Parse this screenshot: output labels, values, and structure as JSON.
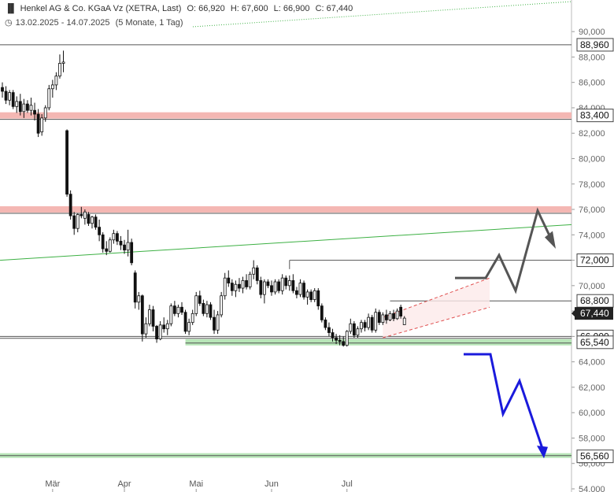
{
  "header": {
    "icon": "candlestick-icon",
    "title": "Henkel AG & Co. KGaA Vz (XETRA, Last)",
    "open": "O: 66,920",
    "high": "H: 67,600",
    "low": "L: 66,900",
    "close": "C: 67,440",
    "clock_icon": "clock-icon",
    "range": "13.02.2025 - 14.07.2025",
    "period": "(5 Monate, 1 Tag)"
  },
  "chart_data": {
    "type": "candlestick",
    "ylim": [
      54000,
      91000
    ],
    "y_ticks": [
      {
        "v": 90000,
        "label": "90,000"
      },
      {
        "v": 88000,
        "label": "88,000"
      },
      {
        "v": 86000,
        "label": "86,000"
      },
      {
        "v": 84000,
        "label": "84,000"
      },
      {
        "v": 82000,
        "label": "82,000"
      },
      {
        "v": 80000,
        "label": "80,000"
      },
      {
        "v": 78000,
        "label": "78,000"
      },
      {
        "v": 76000,
        "label": "76,000"
      },
      {
        "v": 74000,
        "label": "74,000"
      },
      {
        "v": 72000,
        "label": "72,000"
      },
      {
        "v": 70000,
        "label": "70,000"
      },
      {
        "v": 68000,
        "label": "68,000"
      },
      {
        "v": 66000,
        "label": "66,000"
      },
      {
        "v": 64000,
        "label": "64,000"
      },
      {
        "v": 62000,
        "label": "62,000"
      },
      {
        "v": 60000,
        "label": "60,000"
      },
      {
        "v": 58000,
        "label": "58,000"
      },
      {
        "v": 56000,
        "label": "56,000"
      },
      {
        "v": 54000,
        "label": "54,000"
      }
    ],
    "x_labels": [
      {
        "index": 14,
        "label": "Mär"
      },
      {
        "index": 34,
        "label": "Apr"
      },
      {
        "index": 54,
        "label": "Mai"
      },
      {
        "index": 75,
        "label": "Jun"
      },
      {
        "index": 96,
        "label": "Jul"
      }
    ],
    "price_levels": [
      {
        "value": 88960,
        "label": "88,960",
        "kind": "line"
      },
      {
        "value": 83400,
        "label": "83,400",
        "kind": "resistance"
      },
      {
        "value": 76000,
        "label": "",
        "kind": "resistance"
      },
      {
        "value": 72000,
        "label": "72,000",
        "kind": "line"
      },
      {
        "value": 68800,
        "label": "68,800",
        "kind": "line"
      },
      {
        "value": 66000,
        "label": "66,000",
        "kind": "line"
      },
      {
        "value": 65540,
        "label": "65,540",
        "kind": "support"
      },
      {
        "value": 56560,
        "label": "56,560",
        "kind": "support"
      }
    ],
    "current_price": {
      "value": 67440,
      "label": "67,440"
    },
    "colors": {
      "up": "#ffffff",
      "down": "#111111",
      "resistance": "#f4b7b3",
      "support": "#b8e6b8",
      "trend": "#3cb043",
      "bull_arrow": "#555555",
      "bear_arrow": "#1a1adc"
    },
    "candles": [
      {
        "o": 85600,
        "h": 86000,
        "l": 84800,
        "c": 85300
      },
      {
        "o": 85300,
        "h": 85700,
        "l": 84300,
        "c": 84600
      },
      {
        "o": 84600,
        "h": 85400,
        "l": 84200,
        "c": 85200
      },
      {
        "o": 85200,
        "h": 85400,
        "l": 83900,
        "c": 84100
      },
      {
        "o": 84100,
        "h": 84900,
        "l": 83600,
        "c": 84500
      },
      {
        "o": 84500,
        "h": 85100,
        "l": 83400,
        "c": 83700
      },
      {
        "o": 83700,
        "h": 84700,
        "l": 83200,
        "c": 84300
      },
      {
        "o": 84300,
        "h": 84600,
        "l": 83600,
        "c": 83800
      },
      {
        "o": 83800,
        "h": 84800,
        "l": 83400,
        "c": 84200
      },
      {
        "o": 83800,
        "h": 84400,
        "l": 83000,
        "c": 83500
      },
      {
        "o": 83500,
        "h": 83900,
        "l": 81700,
        "c": 82000
      },
      {
        "o": 82100,
        "h": 83500,
        "l": 81800,
        "c": 83200
      },
      {
        "o": 83200,
        "h": 84200,
        "l": 82900,
        "c": 84000
      },
      {
        "o": 84000,
        "h": 85800,
        "l": 83800,
        "c": 85500
      },
      {
        "o": 85500,
        "h": 86200,
        "l": 84800,
        "c": 85800
      },
      {
        "o": 85800,
        "h": 86800,
        "l": 85400,
        "c": 86500
      },
      {
        "o": 86500,
        "h": 88200,
        "l": 86300,
        "c": 87500
      },
      {
        "o": 87500,
        "h": 88500,
        "l": 86800,
        "c": 87600
      },
      {
        "o": 82200,
        "h": 82300,
        "l": 77000,
        "c": 77200
      },
      {
        "o": 77200,
        "h": 77500,
        "l": 75200,
        "c": 75500
      },
      {
        "o": 75500,
        "h": 75800,
        "l": 74000,
        "c": 74500
      },
      {
        "o": 74500,
        "h": 75700,
        "l": 74200,
        "c": 75600
      },
      {
        "o": 75600,
        "h": 76200,
        "l": 75300,
        "c": 75500
      },
      {
        "o": 75300,
        "h": 76000,
        "l": 74800,
        "c": 75800
      },
      {
        "o": 75600,
        "h": 75800,
        "l": 74700,
        "c": 74900
      },
      {
        "o": 74900,
        "h": 75500,
        "l": 74500,
        "c": 75400
      },
      {
        "o": 75400,
        "h": 75600,
        "l": 74400,
        "c": 74600
      },
      {
        "o": 74600,
        "h": 75200,
        "l": 73500,
        "c": 74000
      },
      {
        "o": 74000,
        "h": 74200,
        "l": 72600,
        "c": 72900
      },
      {
        "o": 72900,
        "h": 73500,
        "l": 72400,
        "c": 72700
      },
      {
        "o": 72700,
        "h": 73800,
        "l": 72600,
        "c": 73600
      },
      {
        "o": 73600,
        "h": 74400,
        "l": 73300,
        "c": 74100
      },
      {
        "o": 74100,
        "h": 74300,
        "l": 73200,
        "c": 73500
      },
      {
        "o": 73500,
        "h": 73900,
        "l": 72800,
        "c": 73200
      },
      {
        "o": 73200,
        "h": 73600,
        "l": 72500,
        "c": 72800
      },
      {
        "o": 72800,
        "h": 74400,
        "l": 72300,
        "c": 73400
      },
      {
        "o": 73400,
        "h": 73700,
        "l": 71600,
        "c": 71800
      },
      {
        "o": 71000,
        "h": 71200,
        "l": 68200,
        "c": 68700
      },
      {
        "o": 68700,
        "h": 69500,
        "l": 68100,
        "c": 69200
      },
      {
        "o": 69200,
        "h": 69300,
        "l": 65600,
        "c": 66200
      },
      {
        "o": 66200,
        "h": 67500,
        "l": 65900,
        "c": 67000
      },
      {
        "o": 67000,
        "h": 68500,
        "l": 66800,
        "c": 68100
      },
      {
        "o": 68100,
        "h": 68400,
        "l": 66400,
        "c": 66800
      },
      {
        "o": 66800,
        "h": 66900,
        "l": 65500,
        "c": 65800
      },
      {
        "o": 65800,
        "h": 67200,
        "l": 65700,
        "c": 66900
      },
      {
        "o": 66900,
        "h": 67500,
        "l": 66300,
        "c": 66600
      },
      {
        "o": 66600,
        "h": 67300,
        "l": 66100,
        "c": 67000
      },
      {
        "o": 67000,
        "h": 68600,
        "l": 66800,
        "c": 68400
      },
      {
        "o": 68400,
        "h": 68800,
        "l": 67600,
        "c": 67800
      },
      {
        "o": 67800,
        "h": 68500,
        "l": 67500,
        "c": 68300
      },
      {
        "o": 68300,
        "h": 68700,
        "l": 67700,
        "c": 67900
      },
      {
        "o": 67900,
        "h": 68100,
        "l": 66200,
        "c": 66400
      },
      {
        "o": 66400,
        "h": 67400,
        "l": 66100,
        "c": 67100
      },
      {
        "o": 67100,
        "h": 68100,
        "l": 66900,
        "c": 67800
      },
      {
        "o": 67800,
        "h": 69500,
        "l": 67600,
        "c": 69200
      },
      {
        "o": 69200,
        "h": 69600,
        "l": 68400,
        "c": 68600
      },
      {
        "o": 68600,
        "h": 68900,
        "l": 67600,
        "c": 67800
      },
      {
        "o": 67800,
        "h": 68800,
        "l": 67500,
        "c": 68500
      },
      {
        "o": 68500,
        "h": 68700,
        "l": 67300,
        "c": 67500
      },
      {
        "o": 67500,
        "h": 68100,
        "l": 66200,
        "c": 66500
      },
      {
        "o": 66500,
        "h": 68000,
        "l": 66200,
        "c": 67700
      },
      {
        "o": 67700,
        "h": 69500,
        "l": 67500,
        "c": 69200
      },
      {
        "o": 69200,
        "h": 71000,
        "l": 68900,
        "c": 70600
      },
      {
        "o": 70600,
        "h": 71200,
        "l": 69900,
        "c": 70200
      },
      {
        "o": 70200,
        "h": 70500,
        "l": 69200,
        "c": 69600
      },
      {
        "o": 69600,
        "h": 70400,
        "l": 69100,
        "c": 70100
      },
      {
        "o": 70100,
        "h": 70600,
        "l": 69500,
        "c": 69800
      },
      {
        "o": 69800,
        "h": 70700,
        "l": 69400,
        "c": 70400
      },
      {
        "o": 70400,
        "h": 70900,
        "l": 69700,
        "c": 69900
      },
      {
        "o": 69900,
        "h": 71100,
        "l": 69700,
        "c": 70900
      },
      {
        "o": 70900,
        "h": 72000,
        "l": 70500,
        "c": 71400
      },
      {
        "o": 71400,
        "h": 71600,
        "l": 70100,
        "c": 70400
      },
      {
        "o": 70400,
        "h": 70700,
        "l": 69000,
        "c": 69300
      },
      {
        "o": 69300,
        "h": 70500,
        "l": 68600,
        "c": 70300
      },
      {
        "o": 70300,
        "h": 70500,
        "l": 69800,
        "c": 70000
      },
      {
        "o": 70000,
        "h": 70400,
        "l": 69200,
        "c": 69500
      },
      {
        "o": 69500,
        "h": 70500,
        "l": 69300,
        "c": 70300
      },
      {
        "o": 70300,
        "h": 70500,
        "l": 69400,
        "c": 69600
      },
      {
        "o": 69600,
        "h": 70900,
        "l": 69300,
        "c": 70600
      },
      {
        "o": 70600,
        "h": 70800,
        "l": 69700,
        "c": 70000
      },
      {
        "o": 70000,
        "h": 70800,
        "l": 69600,
        "c": 70400
      },
      {
        "o": 70400,
        "h": 70900,
        "l": 69400,
        "c": 69600
      },
      {
        "o": 69600,
        "h": 69900,
        "l": 69000,
        "c": 69300
      },
      {
        "o": 69300,
        "h": 70500,
        "l": 69100,
        "c": 70200
      },
      {
        "o": 70200,
        "h": 70400,
        "l": 68900,
        "c": 69100
      },
      {
        "o": 69100,
        "h": 69700,
        "l": 68500,
        "c": 69500
      },
      {
        "o": 69500,
        "h": 69700,
        "l": 68700,
        "c": 68900
      },
      {
        "o": 68900,
        "h": 69800,
        "l": 68700,
        "c": 69600
      },
      {
        "o": 69600,
        "h": 69800,
        "l": 68100,
        "c": 68400
      },
      {
        "o": 68400,
        "h": 68600,
        "l": 67100,
        "c": 67300
      },
      {
        "o": 67300,
        "h": 67500,
        "l": 66500,
        "c": 66700
      },
      {
        "o": 66700,
        "h": 67100,
        "l": 66000,
        "c": 66300
      },
      {
        "o": 66300,
        "h": 66600,
        "l": 65600,
        "c": 65900
      },
      {
        "o": 65900,
        "h": 66200,
        "l": 65400,
        "c": 65700
      },
      {
        "o": 65700,
        "h": 66100,
        "l": 65300,
        "c": 65600
      },
      {
        "o": 65600,
        "h": 66000,
        "l": 65200,
        "c": 65300
      },
      {
        "o": 65300,
        "h": 66500,
        "l": 65200,
        "c": 66400
      },
      {
        "o": 66400,
        "h": 67400,
        "l": 66200,
        "c": 67000
      },
      {
        "o": 67000,
        "h": 67200,
        "l": 65900,
        "c": 66100
      },
      {
        "o": 66100,
        "h": 66800,
        "l": 65900,
        "c": 66600
      },
      {
        "o": 66600,
        "h": 67300,
        "l": 66300,
        "c": 67100
      },
      {
        "o": 67100,
        "h": 67300,
        "l": 66400,
        "c": 66700
      },
      {
        "o": 66700,
        "h": 67800,
        "l": 66500,
        "c": 67500
      },
      {
        "o": 67500,
        "h": 67700,
        "l": 66300,
        "c": 66500
      },
      {
        "o": 66500,
        "h": 68200,
        "l": 66300,
        "c": 67900
      },
      {
        "o": 67900,
        "h": 68100,
        "l": 66900,
        "c": 67100
      },
      {
        "o": 67100,
        "h": 67900,
        "l": 66900,
        "c": 67700
      },
      {
        "o": 67700,
        "h": 68100,
        "l": 67000,
        "c": 67300
      },
      {
        "o": 67300,
        "h": 68000,
        "l": 67200,
        "c": 67800
      },
      {
        "o": 67800,
        "h": 68100,
        "l": 67200,
        "c": 67400
      },
      {
        "o": 67400,
        "h": 68200,
        "l": 67300,
        "c": 68000
      },
      {
        "o": 68300,
        "h": 68500,
        "l": 67400,
        "c": 67600
      },
      {
        "o": 66920,
        "h": 67600,
        "l": 66900,
        "c": 67440
      }
    ]
  }
}
